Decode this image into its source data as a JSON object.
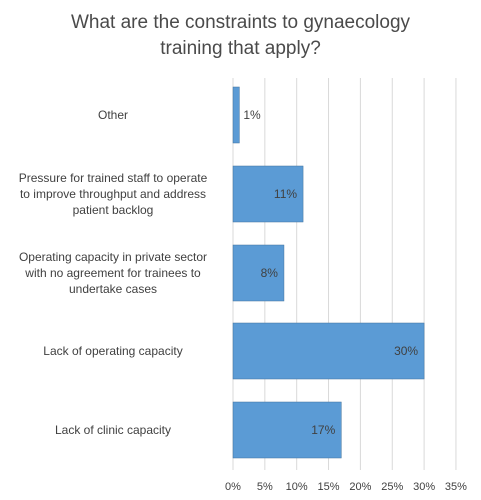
{
  "chart_data": {
    "type": "bar",
    "orientation": "horizontal",
    "title_lines": [
      "What are the constraints to gynaecology",
      "training that apply?"
    ],
    "categories": [
      [
        "Other"
      ],
      [
        "Pressure for trained staff to operate",
        "to improve throughput and address",
        "patient backlog"
      ],
      [
        "Operating capacity in private sector",
        "with no agreement for trainees to",
        "undertake cases"
      ],
      [
        "Lack of operating capacity"
      ],
      [
        "Lack of clinic capacity"
      ]
    ],
    "values": [
      1,
      11,
      8,
      30,
      17
    ],
    "data_labels": [
      "1%",
      "11%",
      "8%",
      "30%",
      "17%"
    ],
    "xlim": [
      0,
      35
    ],
    "x_ticks": [
      "0%",
      "5%",
      "10%",
      "15%",
      "20%",
      "25%",
      "30%",
      "35%"
    ],
    "x_tick_values": [
      0,
      5,
      10,
      15,
      20,
      25,
      30,
      35
    ],
    "grid": "vertical",
    "bar_color": "#5b9bd5"
  }
}
